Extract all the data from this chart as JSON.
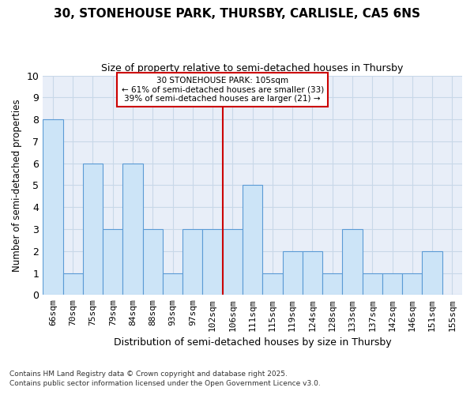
{
  "title": "30, STONEHOUSE PARK, THURSBY, CARLISLE, CA5 6NS",
  "subtitle": "Size of property relative to semi-detached houses in Thursby",
  "xlabel": "Distribution of semi-detached houses by size in Thursby",
  "ylabel": "Number of semi-detached properties",
  "categories": [
    "66sqm",
    "70sqm",
    "75sqm",
    "79sqm",
    "84sqm",
    "88sqm",
    "93sqm",
    "97sqm",
    "102sqm",
    "106sqm",
    "111sqm",
    "115sqm",
    "119sqm",
    "124sqm",
    "128sqm",
    "133sqm",
    "137sqm",
    "142sqm",
    "146sqm",
    "151sqm",
    "155sqm"
  ],
  "values": [
    8,
    1,
    6,
    3,
    6,
    3,
    1,
    3,
    3,
    3,
    5,
    1,
    2,
    2,
    1,
    3,
    1,
    1,
    1,
    2,
    0
  ],
  "bar_color": "#cce4f7",
  "bar_edge_color": "#5b9bd5",
  "vline_index": 9,
  "vline_color": "#cc0000",
  "annotation_title": "30 STONEHOUSE PARK: 105sqm",
  "annotation_line1": "← 61% of semi-detached houses are smaller (33)",
  "annotation_line2": "39% of semi-detached houses are larger (21) →",
  "annotation_box_color": "#ffffff",
  "annotation_box_edge": "#cc0000",
  "ylim": [
    0,
    10
  ],
  "yticks": [
    0,
    1,
    2,
    3,
    4,
    5,
    6,
    7,
    8,
    9,
    10
  ],
  "grid_color": "#c8d8e8",
  "bg_color": "#ffffff",
  "plot_bg_color": "#e8eef8",
  "footnote1": "Contains HM Land Registry data © Crown copyright and database right 2025.",
  "footnote2": "Contains public sector information licensed under the Open Government Licence v3.0."
}
